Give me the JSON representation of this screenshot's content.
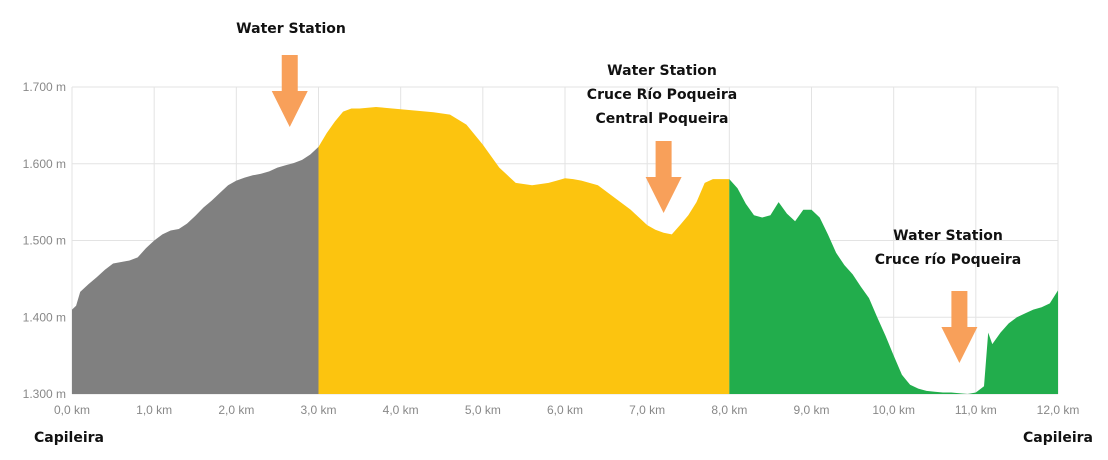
{
  "chart_data": {
    "type": "area",
    "title": "",
    "xlabel": "",
    "ylabel": "",
    "xlim": [
      0,
      12
    ],
    "ylim": [
      1300,
      1700
    ],
    "grid": true,
    "x_ticks": [
      "0,0 km",
      "1,0 km",
      "2,0 km",
      "3,0 km",
      "4,0 km",
      "5,0 km",
      "6,0 km",
      "7,0 km",
      "8,0 km",
      "9,0 km",
      "10,0 km",
      "11,0 km",
      "12,0 km"
    ],
    "y_ticks": [
      "1.300 m",
      "1.400 m",
      "1.500 m",
      "1.600 m",
      "1.700 m"
    ],
    "segments": [
      {
        "range": [
          0,
          3
        ],
        "color": "#808080"
      },
      {
        "range": [
          3,
          8
        ],
        "color": "#fcc40f"
      },
      {
        "range": [
          8,
          12
        ],
        "color": "#22ad4c"
      }
    ],
    "series": [
      {
        "x": [
          0.0,
          0.05,
          0.1,
          0.2,
          0.3,
          0.4,
          0.5,
          0.6,
          0.7,
          0.8,
          0.9,
          1.0,
          1.1,
          1.2,
          1.3,
          1.4,
          1.5,
          1.6,
          1.7,
          1.8,
          1.9,
          2.0,
          2.1,
          2.2,
          2.3,
          2.4,
          2.5,
          2.6,
          2.7,
          2.8,
          2.9,
          3.0,
          3.1,
          3.2,
          3.3,
          3.4,
          3.5,
          3.6,
          3.7,
          3.8,
          3.9,
          4.0,
          4.2,
          4.4,
          4.6,
          4.8,
          5.0,
          5.2,
          5.4,
          5.6,
          5.8,
          5.9,
          6.0,
          6.1,
          6.2,
          6.4,
          6.6,
          6.8,
          7.0,
          7.1,
          7.2,
          7.3,
          7.4,
          7.5,
          7.6,
          7.7,
          7.8,
          7.9,
          8.0,
          8.1,
          8.2,
          8.3,
          8.4,
          8.5,
          8.6,
          8.7,
          8.8,
          8.9,
          9.0,
          9.1,
          9.2,
          9.3,
          9.4,
          9.5,
          9.6,
          9.7,
          9.8,
          9.9,
          10.0,
          10.1,
          10.2,
          10.3,
          10.4,
          10.5,
          10.6,
          10.7,
          10.8,
          10.9,
          11.0,
          11.1,
          11.15,
          11.2,
          11.3,
          11.4,
          11.5,
          11.6,
          11.7,
          11.8,
          11.9,
          12.0
        ],
        "y": [
          1410,
          1415,
          1433,
          1443,
          1452,
          1462,
          1470,
          1472,
          1474,
          1478,
          1490,
          1500,
          1508,
          1513,
          1515,
          1522,
          1532,
          1543,
          1552,
          1562,
          1572,
          1578,
          1582,
          1585,
          1587,
          1590,
          1595,
          1598,
          1601,
          1605,
          1612,
          1622,
          1640,
          1655,
          1668,
          1672,
          1672,
          1673,
          1674,
          1673,
          1672,
          1671,
          1669,
          1667,
          1664,
          1651,
          1625,
          1595,
          1575,
          1572,
          1575,
          1578,
          1581,
          1580,
          1578,
          1572,
          1556,
          1540,
          1520,
          1514,
          1510,
          1508,
          1520,
          1533,
          1550,
          1575,
          1580,
          1580,
          1580,
          1568,
          1548,
          1533,
          1530,
          1533,
          1550,
          1535,
          1525,
          1540,
          1540,
          1530,
          1508,
          1484,
          1468,
          1456,
          1440,
          1425,
          1400,
          1376,
          1350,
          1325,
          1312,
          1307,
          1304,
          1303,
          1302,
          1302,
          1301,
          1300,
          1302,
          1310,
          1380,
          1365,
          1380,
          1392,
          1400,
          1405,
          1410,
          1413,
          1418,
          1435
        ]
      }
    ],
    "annotations": [
      {
        "lines": [
          "Water Station"
        ],
        "x": 2.65
      },
      {
        "lines": [
          "Water Station",
          "Cruce Río Poqueira",
          "Central Poqueira"
        ],
        "x": 7.2
      },
      {
        "lines": [
          "Water Station",
          "Cruce río Poqueira"
        ],
        "x": 10.8
      }
    ],
    "arrow_color": "#f8a05a",
    "start_label": "Capileira",
    "end_label": "Capileira"
  }
}
